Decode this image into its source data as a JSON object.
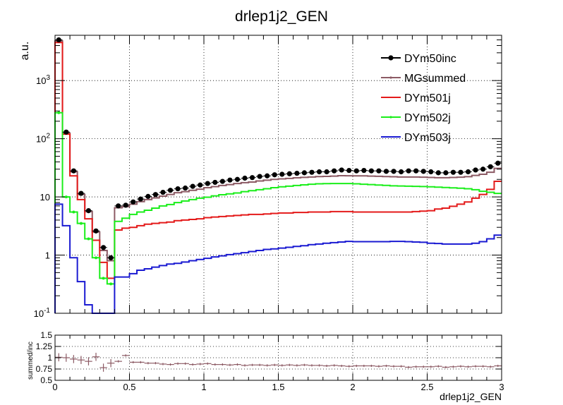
{
  "title": "drlep1j2_GEN",
  "colors": {
    "DYm50inc": "#000000",
    "MGsummed": "#8c5a64",
    "DYm501j": "#e41a1a",
    "DYm502j": "#1aee1a",
    "DYm503j": "#1a1ad2",
    "ratio": "#8c5a64"
  },
  "chart_data": [
    {
      "type": "line",
      "title": "drlep1j2_GEN",
      "ylabel": "a.u.",
      "xlabel": "",
      "xlim": [
        0,
        3
      ],
      "ylim": [
        0.1,
        6000
      ],
      "yscale": "log",
      "grid": true,
      "legend_position": "top-right",
      "bin_edges": [
        0,
        0.05,
        0.1,
        0.15,
        0.2,
        0.25,
        0.3,
        0.35,
        0.4,
        0.45,
        0.5,
        0.55,
        0.6,
        0.65,
        0.7,
        0.75,
        0.8,
        0.85,
        0.9,
        0.95,
        1.0,
        1.05,
        1.1,
        1.15,
        1.2,
        1.25,
        1.3,
        1.35,
        1.4,
        1.45,
        1.5,
        1.55,
        1.6,
        1.65,
        1.7,
        1.75,
        1.8,
        1.85,
        1.9,
        1.95,
        2.0,
        2.05,
        2.1,
        2.15,
        2.2,
        2.25,
        2.3,
        2.35,
        2.4,
        2.45,
        2.5,
        2.55,
        2.6,
        2.65,
        2.7,
        2.75,
        2.8,
        2.85,
        2.9,
        2.95,
        3.0
      ],
      "x_ticks": [
        "0",
        "0.5",
        "1",
        "1.5",
        "2",
        "2.5",
        "3"
      ],
      "y_ticks": [
        "10^-1",
        "1",
        "10",
        "10^2",
        "10^3"
      ],
      "series": [
        {
          "name": "DYm50inc",
          "style": "markers",
          "values": [
            5000,
            130,
            28,
            11.5,
            5.8,
            2.6,
            1.35,
            0.9,
            7,
            7.2,
            8.2,
            9.2,
            10.2,
            11,
            12,
            13,
            13.8,
            14.2,
            15.2,
            16,
            17,
            17.8,
            18.5,
            19.5,
            20,
            21,
            21.5,
            22.5,
            23,
            24,
            24.5,
            25,
            25.5,
            26,
            26.5,
            27,
            27,
            28,
            29,
            28.5,
            28,
            28.5,
            28,
            28,
            27.5,
            27.5,
            27,
            28,
            28,
            27.5,
            27,
            26,
            26,
            26.5,
            26.5,
            27,
            29,
            30,
            33,
            38
          ]
        },
        {
          "name": "MGsummed",
          "style": "step",
          "values": [
            4800,
            125,
            27,
            11,
            5.6,
            2.5,
            1.2,
            0.8,
            6.5,
            6.8,
            7.5,
            8.3,
            9,
            9.6,
            10.3,
            11,
            11.8,
            12.3,
            13,
            13.6,
            14.4,
            15,
            15.7,
            16.3,
            17,
            17.6,
            18,
            18.8,
            19.4,
            20,
            20.4,
            20.8,
            21.3,
            21.7,
            22,
            22.4,
            22.5,
            22.8,
            23.2,
            23.1,
            23,
            23,
            22.8,
            22.6,
            22.4,
            22.2,
            22,
            22,
            22,
            21.8,
            21.6,
            21.4,
            21.4,
            21.6,
            21.8,
            22.3,
            23.4,
            24.5,
            26.5,
            31
          ]
        },
        {
          "name": "DYm501j",
          "style": "step",
          "values": [
            4500,
            120,
            23,
            9,
            4.2,
            1.8,
            0.75,
            0.4,
            2.7,
            2.9,
            3.0,
            3.2,
            3.4,
            3.5,
            3.6,
            3.7,
            3.9,
            4.0,
            4.1,
            4.2,
            4.4,
            4.5,
            4.6,
            4.7,
            4.8,
            4.9,
            5.0,
            5.0,
            5.1,
            5.2,
            5.3,
            5.3,
            5.4,
            5.4,
            5.5,
            5.5,
            5.5,
            5.6,
            5.6,
            5.6,
            5.5,
            5.5,
            5.5,
            5.5,
            5.5,
            5.5,
            5.5,
            5.5,
            5.6,
            5.7,
            5.8,
            6.2,
            6.4,
            6.9,
            7.5,
            8.2,
            9.5,
            11,
            13.5,
            18.5
          ]
        },
        {
          "name": "DYm502j",
          "style": "step",
          "values": [
            280,
            10,
            5.5,
            3.5,
            1.9,
            0.9,
            0.4,
            0.32,
            3.8,
            4.3,
            5.0,
            5.5,
            5.9,
            6.4,
            7.0,
            7.4,
            8.0,
            8.5,
            9.0,
            9.5,
            9.9,
            10.4,
            10.9,
            11.3,
            11.7,
            12.3,
            12.8,
            13.3,
            13.8,
            14.4,
            14.9,
            15.3,
            15.7,
            16.1,
            16.5,
            16.8,
            16.9,
            17.0,
            17.0,
            17.0,
            16.8,
            16.5,
            16.3,
            16.0,
            15.8,
            15.5,
            15.4,
            15.3,
            15.2,
            15.1,
            14.9,
            14.7,
            14.5,
            14.3,
            14.1,
            13.8,
            13.3,
            12.5,
            12,
            11.5
          ]
        },
        {
          "name": "DYm503j",
          "style": "step",
          "values": [
            7.5,
            3.2,
            0.9,
            0.35,
            0.14,
            0.1,
            0.09,
            0.09,
            0.42,
            0.42,
            0.48,
            0.55,
            0.58,
            0.62,
            0.66,
            0.7,
            0.72,
            0.76,
            0.8,
            0.84,
            0.88,
            0.93,
            0.97,
            1.02,
            1.06,
            1.1,
            1.15,
            1.2,
            1.25,
            1.28,
            1.32,
            1.36,
            1.41,
            1.45,
            1.51,
            1.55,
            1.6,
            1.64,
            1.68,
            1.72,
            1.7,
            1.7,
            1.7,
            1.7,
            1.7,
            1.72,
            1.72,
            1.7,
            1.68,
            1.66,
            1.6,
            1.58,
            1.55,
            1.55,
            1.55,
            1.55,
            1.6,
            1.7,
            1.9,
            2.2
          ]
        }
      ]
    },
    {
      "type": "scatter",
      "title": "",
      "ylabel": "summed/inc",
      "xlabel": "drlep1j2_GEN",
      "xlim": [
        0,
        3
      ],
      "ylim": [
        0.5,
        1.5
      ],
      "grid": true,
      "y_ticks": [
        "0.5",
        "0.75",
        "1",
        "1.25",
        "1.5"
      ],
      "values": [
        1.01,
        1.0,
        0.97,
        0.95,
        0.92,
        1.02,
        0.78,
        0.88,
        0.92,
        1.05,
        0.9,
        0.9,
        0.88,
        0.88,
        0.86,
        0.85,
        0.87,
        0.87,
        0.85,
        0.86,
        0.87,
        0.85,
        0.85,
        0.84,
        0.85,
        0.83,
        0.84,
        0.84,
        0.83,
        0.84,
        0.83,
        0.84,
        0.83,
        0.84,
        0.83,
        0.83,
        0.82,
        0.83,
        0.82,
        0.81,
        0.82,
        0.82,
        0.82,
        0.81,
        0.82,
        0.81,
        0.81,
        0.79,
        0.8,
        0.8,
        0.8,
        0.81,
        0.79,
        0.8,
        0.81,
        0.8,
        0.81,
        0.81,
        0.8,
        0.82
      ]
    }
  ]
}
